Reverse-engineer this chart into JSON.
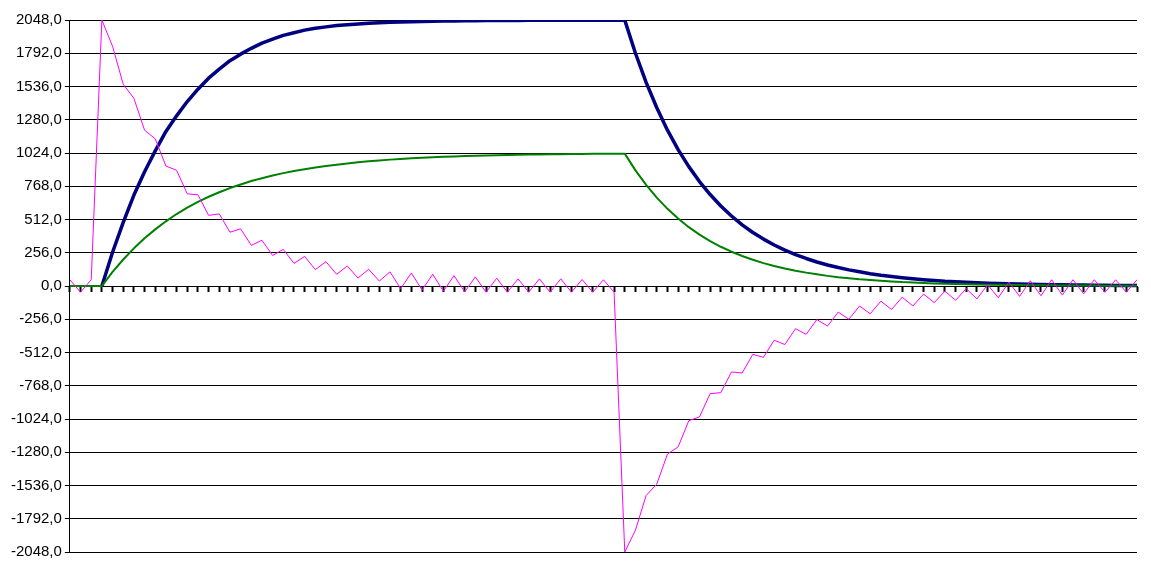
{
  "chart_data": {
    "type": "line",
    "categories": [
      null,
      null,
      null,
      null,
      null,
      null,
      null,
      null,
      null,
      null,
      null,
      null,
      null,
      null,
      null,
      null,
      null,
      null,
      null,
      null,
      null,
      null,
      null,
      null,
      null,
      null,
      null,
      null,
      null,
      null,
      null,
      null,
      null,
      null,
      null,
      null,
      null,
      null,
      null,
      null,
      null,
      null,
      null,
      null,
      null,
      null,
      null,
      null,
      null,
      null,
      null,
      null,
      null,
      null,
      null,
      null,
      null,
      null,
      null,
      null,
      null,
      null,
      null,
      null,
      null,
      null,
      null,
      null,
      null,
      null,
      null,
      null,
      null,
      null,
      null,
      null,
      null,
      null,
      null,
      null,
      null,
      null,
      null,
      null,
      null,
      null,
      null,
      null,
      null,
      null,
      null,
      null,
      null,
      null,
      null,
      null,
      null,
      null,
      null,
      null,
      null
    ],
    "series": [
      {
        "color": "#000080",
        "values": [
          null,
          null,
          null,
          0,
          260,
          490,
          700,
          880,
          1040,
          1190,
          1310,
          1420,
          1515,
          1600,
          1670,
          1735,
          1785,
          1830,
          1870,
          1900,
          1930,
          1950,
          1970,
          1985,
          1995,
          2005,
          2012,
          2018,
          2023,
          2027,
          2030,
          2033,
          2035,
          2037,
          2039,
          2040,
          2041,
          2042,
          2043,
          2044,
          2044,
          2045,
          2045,
          2046,
          2046,
          2046,
          2047,
          2047,
          2047,
          2047,
          2047,
          2047,
          2047,
          1792,
          1568,
          1372,
          1200,
          1050,
          919,
          804,
          704,
          616,
          539,
          471,
          412,
          361,
          316,
          276,
          242,
          212,
          185,
          162,
          142,
          124,
          109,
          95,
          83,
          73,
          64,
          56,
          49,
          43,
          37,
          33,
          29,
          25,
          22,
          19,
          17,
          15,
          13,
          11,
          10,
          9,
          8,
          7,
          6,
          5,
          4,
          4,
          3
        ]
      },
      {
        "color": "#008000",
        "values": [
          0,
          0,
          0,
          0,
          108,
          204,
          290,
          367,
          436,
          498,
          554,
          603,
          647,
          687,
          722,
          754,
          782,
          808,
          830,
          851,
          869,
          885,
          899,
          912,
          924,
          934,
          943,
          952,
          960,
          966,
          973,
          978,
          983,
          987,
          991,
          995,
          998,
          1001,
          1003,
          1005,
          1007,
          1009,
          1010,
          1012,
          1013,
          1014,
          1015,
          1016,
          1017,
          1018,
          1018,
          1019,
          1019,
          890,
          778,
          680,
          594,
          519,
          453,
          396,
          346,
          302,
          264,
          231,
          202,
          176,
          154,
          135,
          118,
          103,
          90,
          78,
          68,
          60,
          52,
          46,
          40,
          35,
          30,
          27,
          23,
          20,
          18,
          16,
          14,
          12,
          10,
          9,
          8,
          7,
          6,
          5,
          5,
          4,
          4,
          3,
          3,
          2,
          2,
          2,
          2
        ]
      },
      {
        "color": "#ff00ff",
        "values": [
          48,
          -48,
          48,
          2048,
          1846,
          1553,
          1445,
          1200,
          1133,
          924,
          891,
          710,
          702,
          544,
          555,
          414,
          440,
          313,
          352,
          235,
          282,
          174,
          228,
          126,
          187,
          90,
          154,
          61,
          129,
          38,
          109,
          -20,
          100,
          -30,
          90,
          -40,
          80,
          -45,
          70,
          -48,
          60,
          -48,
          55,
          -48,
          55,
          -48,
          55,
          -48,
          50,
          -48,
          48,
          -48,
          -2048,
          -1880,
          -1613,
          -1525,
          -1294,
          -1239,
          -1037,
          -1008,
          -829,
          -821,
          -662,
          -670,
          -526,
          -549,
          -417,
          -451,
          -329,
          -372,
          -258,
          -308,
          -201,
          -256,
          -154,
          -214,
          -117,
          -181,
          -86,
          -154,
          -62,
          -128,
          -40,
          -110,
          -20,
          -100,
          10,
          -90,
          30,
          -80,
          40,
          -75,
          48,
          -70,
          48,
          -60,
          48,
          -48,
          48,
          -48,
          48
        ]
      }
    ],
    "ylim": [
      -2048,
      2048
    ],
    "yticks": [
      {
        "value": -2048,
        "label": "-2048,0"
      },
      {
        "value": -1792,
        "label": "-1792,0"
      },
      {
        "value": -1536,
        "label": "-1536,0"
      },
      {
        "value": -1280,
        "label": "-1280,0"
      },
      {
        "value": -1024,
        "label": "-1024,0"
      },
      {
        "value": -768,
        "label": "-768,0"
      },
      {
        "value": -512,
        "label": "-512,0"
      },
      {
        "value": -256,
        "label": "-256,0"
      },
      {
        "value": 0,
        "label": "0,0"
      },
      {
        "value": 256,
        "label": "256,0"
      },
      {
        "value": 512,
        "label": "512,0"
      },
      {
        "value": 768,
        "label": "768,0"
      },
      {
        "value": 1024,
        "label": "1024,0"
      },
      {
        "value": 1280,
        "label": "1280,0"
      },
      {
        "value": 1536,
        "label": "1536,0"
      },
      {
        "value": 1792,
        "label": "1792,0"
      },
      {
        "value": 2048,
        "label": "2048,0"
      }
    ],
    "grid": "y",
    "tick_labels": "y",
    "marker": "none",
    "line_style": "solid"
  }
}
